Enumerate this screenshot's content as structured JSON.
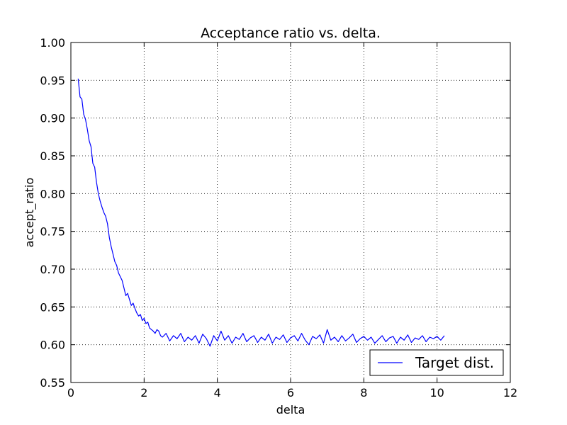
{
  "chart_data": {
    "type": "line",
    "title": "Acceptance ratio vs. delta.",
    "xlabel": "delta",
    "ylabel": "accept_ratio",
    "xlim": [
      0,
      12
    ],
    "ylim": [
      0.55,
      1.0
    ],
    "xticks": [
      0,
      2,
      4,
      6,
      8,
      10,
      12
    ],
    "xtick_labels": [
      "0",
      "2",
      "4",
      "6",
      "8",
      "10",
      "12"
    ],
    "yticks": [
      0.55,
      0.6,
      0.65,
      0.7,
      0.75,
      0.8,
      0.85,
      0.9,
      0.95,
      1.0
    ],
    "ytick_labels": [
      "0.55",
      "0.60",
      "0.65",
      "0.70",
      "0.75",
      "0.80",
      "0.85",
      "0.90",
      "0.95",
      "1.00"
    ],
    "grid": true,
    "legend_position": "lower-right",
    "series": [
      {
        "name": "Target dist.",
        "color": "#0000ff",
        "x": [
          0.2,
          0.25,
          0.3,
          0.35,
          0.4,
          0.45,
          0.5,
          0.55,
          0.6,
          0.65,
          0.7,
          0.75,
          0.8,
          0.85,
          0.9,
          0.95,
          1.0,
          1.05,
          1.1,
          1.15,
          1.2,
          1.25,
          1.3,
          1.35,
          1.4,
          1.45,
          1.5,
          1.55,
          1.6,
          1.65,
          1.7,
          1.75,
          1.8,
          1.85,
          1.9,
          1.95,
          2.0,
          2.05,
          2.1,
          2.15,
          2.2,
          2.25,
          2.3,
          2.35,
          2.4,
          2.45,
          2.5,
          2.6,
          2.7,
          2.8,
          2.9,
          3.0,
          3.1,
          3.2,
          3.3,
          3.4,
          3.5,
          3.6,
          3.7,
          3.8,
          3.9,
          4.0,
          4.1,
          4.2,
          4.3,
          4.4,
          4.5,
          4.6,
          4.7,
          4.8,
          4.9,
          5.0,
          5.1,
          5.2,
          5.3,
          5.4,
          5.5,
          5.6,
          5.7,
          5.8,
          5.9,
          6.0,
          6.1,
          6.2,
          6.3,
          6.4,
          6.5,
          6.6,
          6.7,
          6.8,
          6.9,
          7.0,
          7.1,
          7.2,
          7.3,
          7.4,
          7.5,
          7.6,
          7.7,
          7.8,
          7.9,
          8.0,
          8.1,
          8.2,
          8.3,
          8.4,
          8.5,
          8.6,
          8.7,
          8.8,
          8.9,
          9.0,
          9.1,
          9.2,
          9.3,
          9.4,
          9.5,
          9.6,
          9.7,
          9.8,
          9.9,
          10.0,
          10.1,
          10.2
        ],
        "y": [
          0.952,
          0.928,
          0.925,
          0.905,
          0.898,
          0.885,
          0.87,
          0.862,
          0.84,
          0.835,
          0.815,
          0.8,
          0.79,
          0.782,
          0.775,
          0.77,
          0.76,
          0.742,
          0.73,
          0.72,
          0.71,
          0.705,
          0.695,
          0.69,
          0.685,
          0.675,
          0.665,
          0.668,
          0.66,
          0.652,
          0.655,
          0.648,
          0.642,
          0.638,
          0.64,
          0.632,
          0.635,
          0.628,
          0.63,
          0.622,
          0.62,
          0.618,
          0.615,
          0.62,
          0.618,
          0.612,
          0.61,
          0.615,
          0.605,
          0.612,
          0.608,
          0.615,
          0.604,
          0.61,
          0.606,
          0.612,
          0.602,
          0.614,
          0.608,
          0.598,
          0.612,
          0.605,
          0.618,
          0.606,
          0.612,
          0.602,
          0.61,
          0.607,
          0.615,
          0.604,
          0.609,
          0.612,
          0.603,
          0.61,
          0.606,
          0.614,
          0.602,
          0.61,
          0.607,
          0.613,
          0.603,
          0.609,
          0.612,
          0.605,
          0.615,
          0.606,
          0.6,
          0.611,
          0.608,
          0.613,
          0.602,
          0.62,
          0.606,
          0.61,
          0.604,
          0.612,
          0.605,
          0.609,
          0.614,
          0.603,
          0.608,
          0.611,
          0.606,
          0.61,
          0.602,
          0.607,
          0.612,
          0.604,
          0.609,
          0.611,
          0.602,
          0.61,
          0.606,
          0.613,
          0.603,
          0.609,
          0.607,
          0.612,
          0.604,
          0.61,
          0.608,
          0.611,
          0.606,
          0.612
        ]
      }
    ]
  }
}
